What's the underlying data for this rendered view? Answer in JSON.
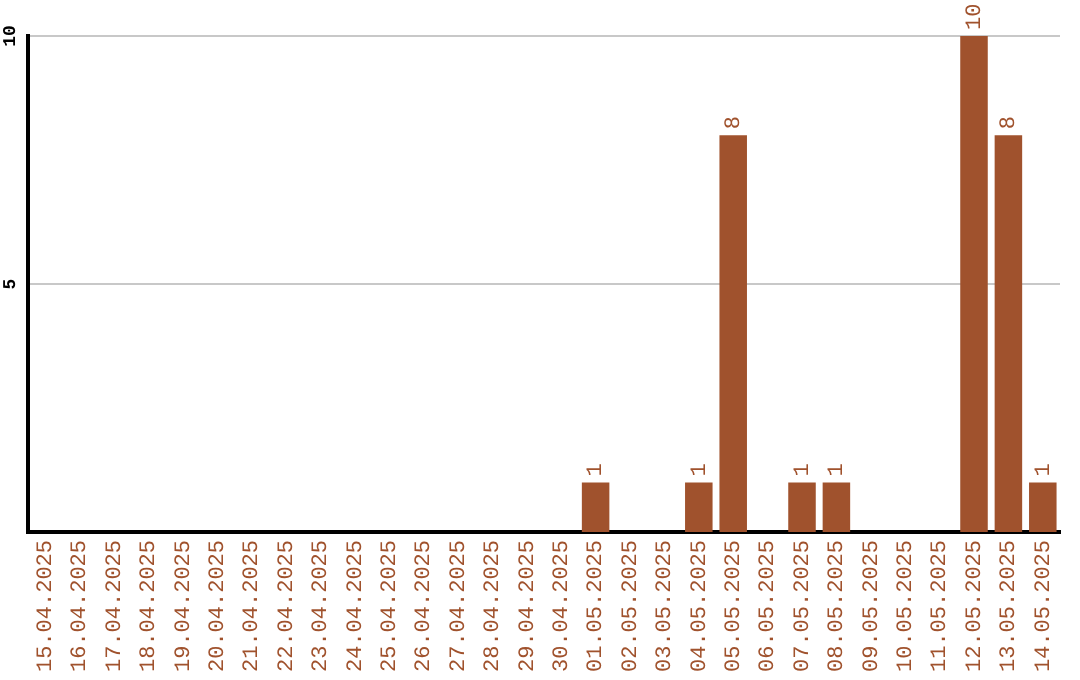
{
  "chart_data": {
    "type": "bar",
    "categories": [
      "15.04.2025",
      "16.04.2025",
      "17.04.2025",
      "18.04.2025",
      "19.04.2025",
      "20.04.2025",
      "21.04.2025",
      "22.04.2025",
      "23.04.2025",
      "24.04.2025",
      "25.04.2025",
      "26.04.2025",
      "27.04.2025",
      "28.04.2025",
      "29.04.2025",
      "30.04.2025",
      "01.05.2025",
      "02.05.2025",
      "03.05.2025",
      "04.05.2025",
      "05.05.2025",
      "06.05.2025",
      "07.05.2025",
      "08.05.2025",
      "09.05.2025",
      "10.05.2025",
      "11.05.2025",
      "12.05.2025",
      "13.05.2025",
      "14.05.2025"
    ],
    "values": [
      0,
      0,
      0,
      0,
      0,
      0,
      0,
      0,
      0,
      0,
      0,
      0,
      0,
      0,
      0,
      0,
      1,
      0,
      0,
      1,
      8,
      0,
      1,
      1,
      0,
      0,
      0,
      10,
      8,
      1
    ],
    "value_labels": [
      null,
      null,
      null,
      null,
      null,
      null,
      null,
      null,
      null,
      null,
      null,
      null,
      null,
      null,
      null,
      null,
      "1",
      null,
      null,
      "1",
      "8",
      null,
      "1",
      "1",
      null,
      null,
      null,
      "10",
      "8",
      "1"
    ],
    "color": "#a0522d",
    "ylim": [
      0,
      10
    ],
    "yticks": [
      5,
      10
    ],
    "grid": "y"
  }
}
